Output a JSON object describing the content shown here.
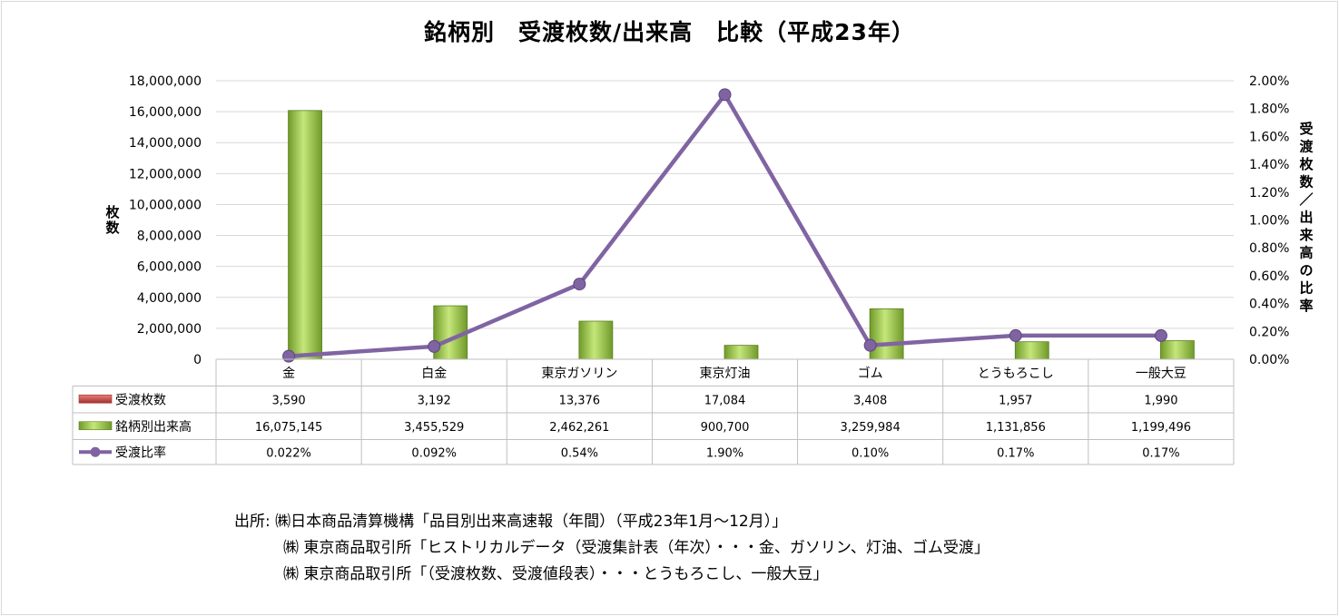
{
  "chart_data": {
    "type": "bar",
    "title": "銘柄別　受渡枚数/出来高　比較（平成23年）",
    "categories": [
      "金",
      "白金",
      "東京ガソリン",
      "東京灯油",
      "ゴム",
      "とうもろこし",
      "一般大豆"
    ],
    "ylabel": "枚数",
    "y2label": "受渡枚数／出来高の比率",
    "ylim": [
      0,
      18000000
    ],
    "y2lim": [
      0,
      0.02
    ],
    "yticks": [
      "18,000,000",
      "16,000,000",
      "14,000,000",
      "12,000,000",
      "10,000,000",
      "8,000,000",
      "6,000,000",
      "4,000,000",
      "2,000,000",
      "0"
    ],
    "y2ticks": [
      "2.00%",
      "1.80%",
      "1.60%",
      "1.40%",
      "1.20%",
      "1.00%",
      "0.80%",
      "0.60%",
      "0.40%",
      "0.20%",
      "0.00%"
    ],
    "grid": true,
    "legend": "data-table",
    "series": [
      {
        "name": "受渡枚数",
        "kind": "bar",
        "axis": "left",
        "color": "#c0504d",
        "values": [
          3590,
          3192,
          13376,
          17084,
          3408,
          1957,
          1990
        ],
        "labels": [
          "3,590",
          "3,192",
          "13,376",
          "17,084",
          "3,408",
          "1,957",
          "1,990"
        ]
      },
      {
        "name": "銘柄別出来高",
        "kind": "bar",
        "axis": "left",
        "color": "#8fc23f",
        "values": [
          16075145,
          3455529,
          2462261,
          900700,
          3259984,
          1131856,
          1199496
        ],
        "labels": [
          "16,075,145",
          "3,455,529",
          "2,462,261",
          "900,700",
          "3,259,984",
          "1,131,856",
          "1,199,496"
        ]
      },
      {
        "name": "受渡比率",
        "kind": "line",
        "axis": "right",
        "color": "#8064a2",
        "values": [
          0.00022,
          0.00092,
          0.0054,
          0.019,
          0.001,
          0.0017,
          0.0017
        ],
        "labels": [
          "0.022%",
          "0.092%",
          "0.54%",
          "1.90%",
          "0.10%",
          "0.17%",
          "0.17%"
        ]
      }
    ]
  },
  "source": {
    "lines": [
      "出所: ㈱日本商品清算機構「品目別出来高速報（年間）（平成23年1月～12月）」",
      "㈱ 東京商品取引所「ヒストリカルデータ（受渡集計表（年次）・・・金、ガソリン、灯油、ゴム受渡」",
      "㈱ 東京商品取引所「（受渡枚数、受渡値段表）・・・とうもろこし、一般大豆」"
    ]
  }
}
